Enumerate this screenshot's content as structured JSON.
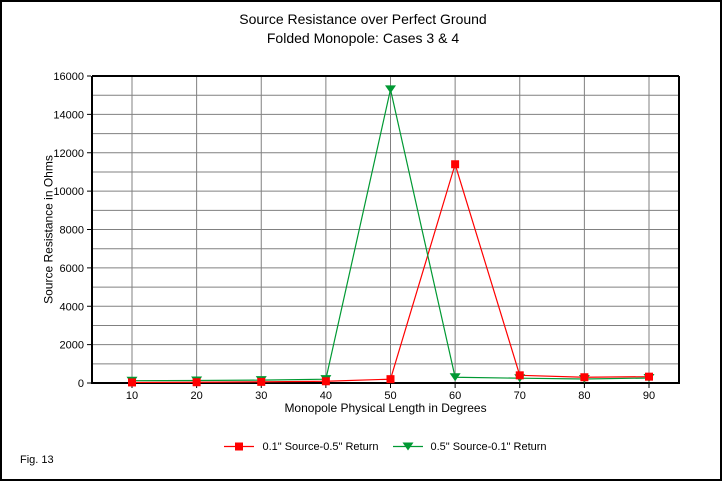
{
  "title": {
    "line1": "Source Resistance over Perfect Ground",
    "line2": "Folded Monopole: Cases 3 & 4"
  },
  "footer": {
    "fig_label": "Fig. 13"
  },
  "chart_data": {
    "type": "line",
    "x": [
      10,
      20,
      30,
      40,
      50,
      60,
      70,
      80,
      90
    ],
    "series": [
      {
        "name": "0.1\" Source-0.5\" Return",
        "color": "#ff0000",
        "marker": "square",
        "values": [
          30,
          40,
          60,
          90,
          200,
          11400,
          400,
          300,
          330
        ]
      },
      {
        "name": "0.5\" Source-0.1\" Return",
        "color": "#009933",
        "marker": "triangle-down",
        "values": [
          120,
          130,
          150,
          200,
          15300,
          300,
          250,
          210,
          260
        ]
      }
    ],
    "xlabel": "Monopole Physical Length in Degrees",
    "ylabel": "Source Resistance in Ohms",
    "xticks": [
      10,
      20,
      30,
      40,
      50,
      60,
      70,
      80,
      90
    ],
    "ylim": [
      0,
      16000
    ],
    "ytick_step": 2000,
    "ygrid_step": 1000,
    "grid": true,
    "legend_position": "bottom",
    "colors": {
      "grid": "#808080",
      "axis": "#000000",
      "background": "#ffffff"
    }
  }
}
